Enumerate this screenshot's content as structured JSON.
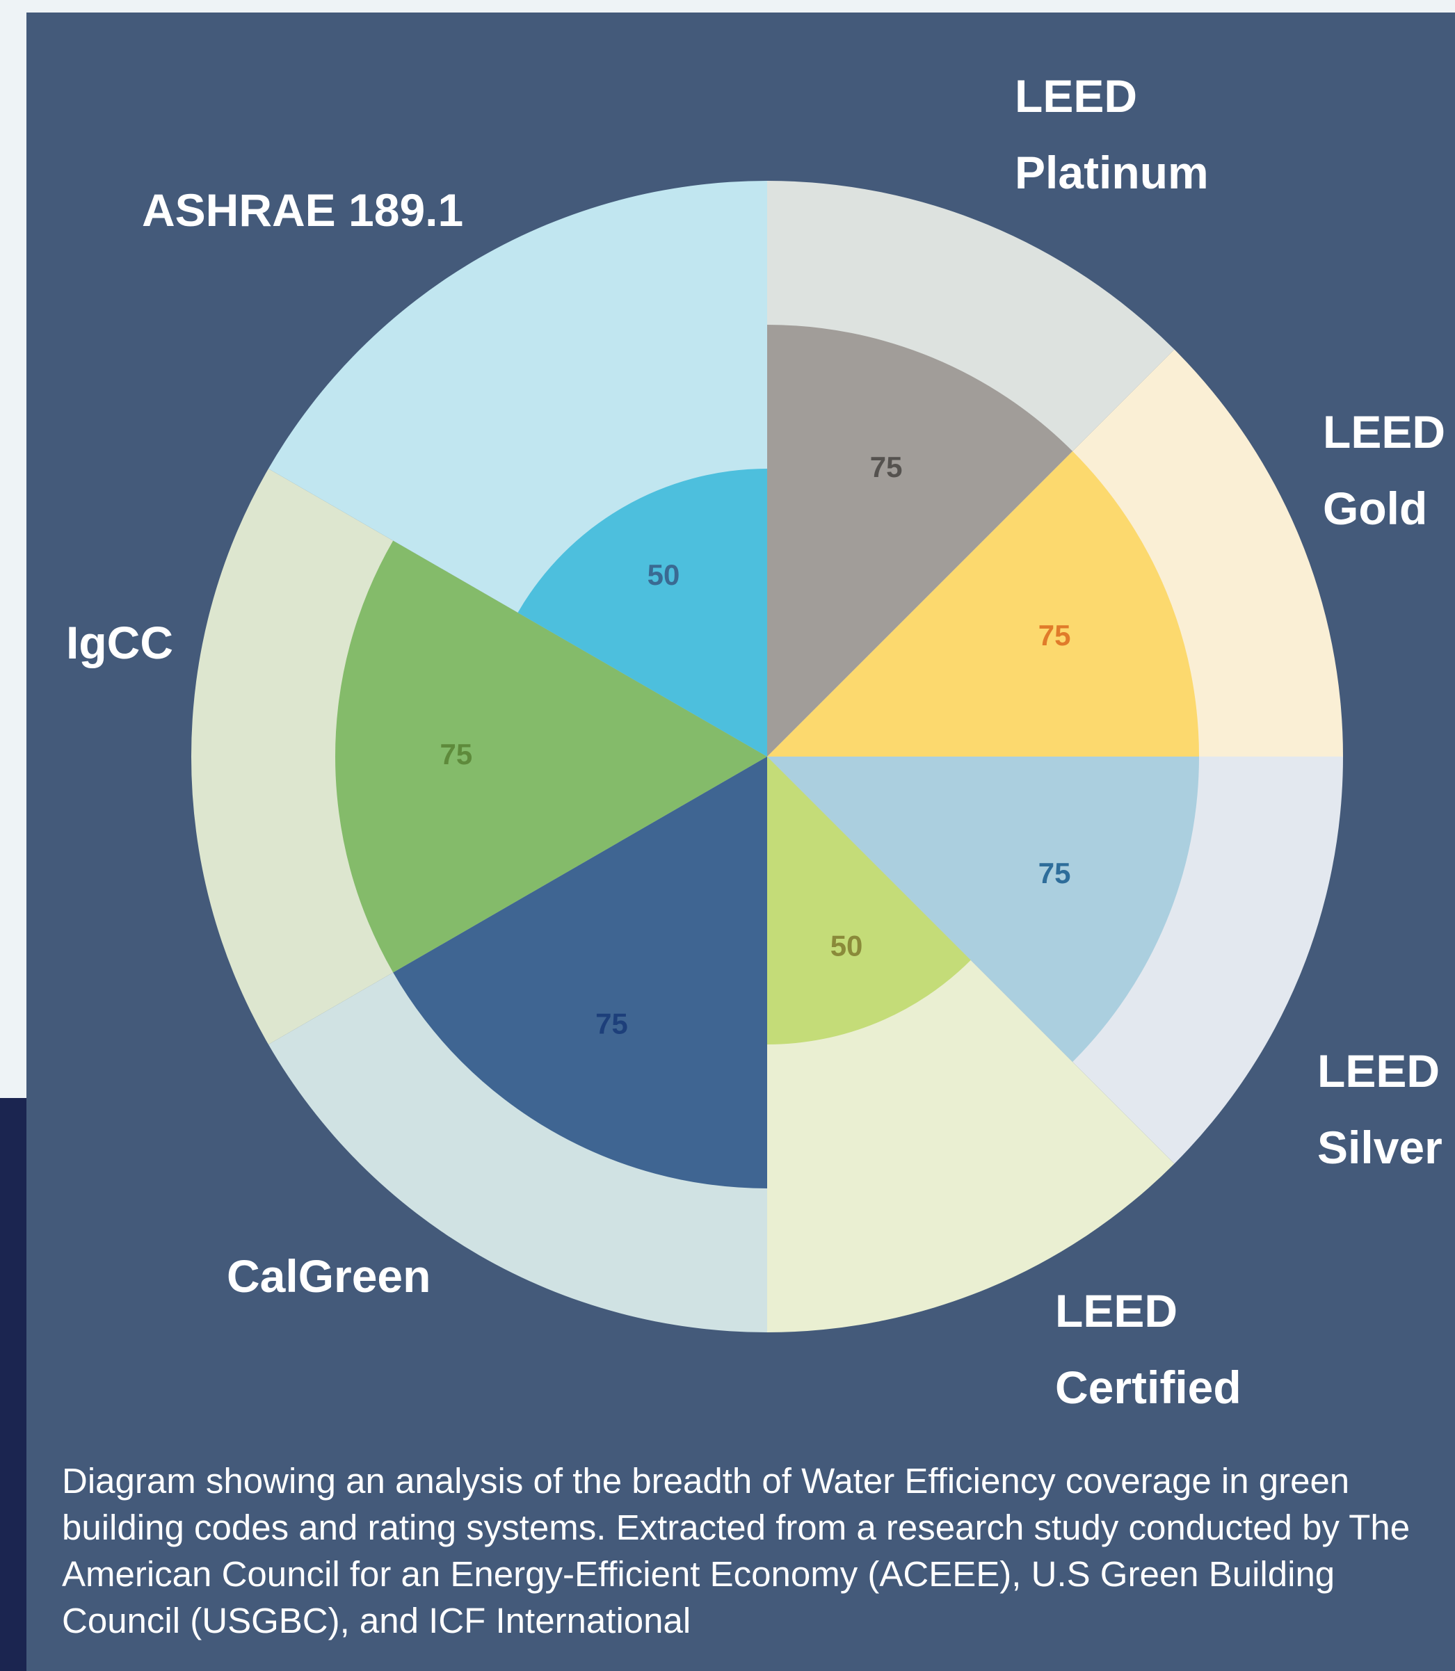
{
  "chart_data": {
    "type": "polar-area",
    "categories": [
      "LEED Platinum",
      "LEED Gold",
      "LEED Silver",
      "LEED Certified",
      "CalGreen",
      "IgCC",
      "ASHRAE 189.1"
    ],
    "values": [
      75,
      75,
      75,
      50,
      75,
      75,
      50
    ],
    "colors": [
      "#a19d99",
      "#fcd96e",
      "#abcfdf",
      "#c4dc78",
      "#3f6592",
      "#84bb6a",
      "#4dbfdd"
    ],
    "outer_colors": [
      "#dde2df",
      "#faefd5",
      "#e3e8ef",
      "#eaefd2",
      "#d0e2e3",
      "#dde6cf",
      "#c1e6f0"
    ],
    "value_label_colors": [
      "#55524f",
      "#e07b2a",
      "#2e6d9a",
      "#8a8a3a",
      "#1d3f7a",
      "#5e8a3b",
      "#3a6a92"
    ],
    "rlim": [
      0,
      100
    ]
  },
  "caption": "Diagram showing an analysis of the breadth of Water Efficiency coverage in green building codes and rating systems. Extracted from a research study conducted by The American Council for an Energy-Efficient Economy (ACEEE), U.S Green Building Council (USGBC), and ICF International"
}
